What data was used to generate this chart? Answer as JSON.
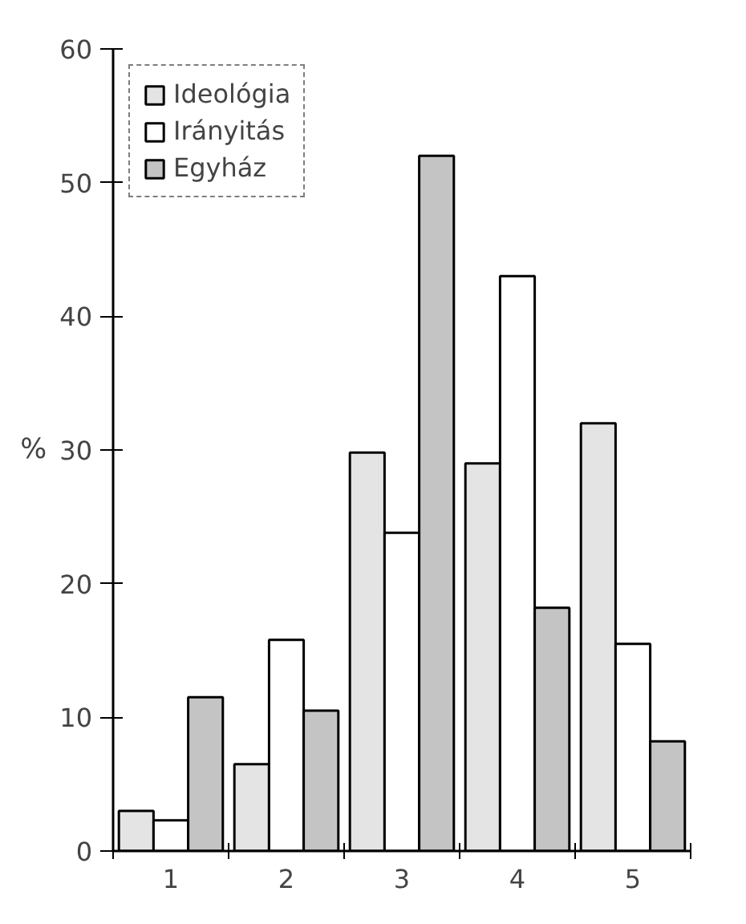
{
  "chart_data": {
    "type": "bar",
    "ylabel": "%",
    "categories": [
      "1",
      "2",
      "3",
      "4",
      "5"
    ],
    "series": [
      {
        "name": "Ideológia",
        "color": "#e4e4e4",
        "values": [
          3,
          6.5,
          29.8,
          29,
          32
        ]
      },
      {
        "name": "Irányitás",
        "color": "#ffffff",
        "values": [
          2.3,
          15.8,
          23.8,
          43,
          15.5
        ]
      },
      {
        "name": "Egyház",
        "color": "#c4c4c4",
        "values": [
          11.5,
          10.5,
          52,
          18.2,
          8.2
        ]
      }
    ],
    "ylim": [
      0,
      60
    ],
    "yticks": [
      0,
      10,
      20,
      30,
      40,
      50,
      60
    ],
    "grid": false,
    "legend": "top left"
  }
}
